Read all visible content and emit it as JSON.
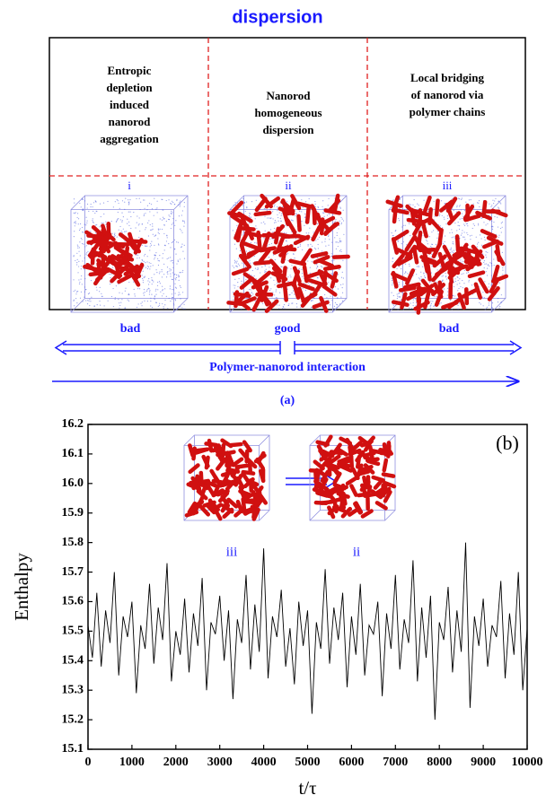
{
  "diagram": {
    "title": "dispersion",
    "columns": [
      {
        "heading": [
          "Entropic",
          "depletion",
          "induced",
          "nanorod",
          "aggregation"
        ],
        "label": "i",
        "quality": "bad"
      },
      {
        "heading": [
          "Nanorod",
          "homogeneous",
          "dispersion"
        ],
        "label": "ii",
        "quality": "good"
      },
      {
        "heading": [
          "Local bridging",
          "of nanorod via",
          "polymer chains"
        ],
        "label": "iii",
        "quality": "bad"
      }
    ],
    "axis_label": "Polymer-nanorod interaction",
    "caption": "(a)"
  },
  "chart_data": {
    "type": "line",
    "panel_label": "(b)",
    "inset_labels": [
      "iii",
      "ii"
    ],
    "xlabel": "t/τ",
    "ylabel": "Enthalpy",
    "color": "#000000",
    "xlim": [
      0,
      10000
    ],
    "ylim": [
      15.1,
      16.2
    ],
    "xticks": [
      0,
      1000,
      2000,
      3000,
      4000,
      5000,
      6000,
      7000,
      8000,
      9000,
      10000
    ],
    "yticks": [
      15.1,
      15.2,
      15.3,
      15.4,
      15.5,
      15.6,
      15.7,
      15.8,
      15.9,
      {
        "value": 16,
        "label": "16.0"
      },
      16.1,
      16.2
    ],
    "x": [
      0,
      100,
      200,
      300,
      400,
      500,
      600,
      700,
      800,
      900,
      1000,
      1100,
      1200,
      1300,
      1400,
      1500,
      1600,
      1700,
      1800,
      1900,
      2000,
      2100,
      2200,
      2300,
      2400,
      2500,
      2600,
      2700,
      2800,
      2900,
      3000,
      3100,
      3200,
      3300,
      3400,
      3500,
      3600,
      3700,
      3800,
      3900,
      4000,
      4100,
      4200,
      4300,
      4400,
      4500,
      4600,
      4700,
      4800,
      4900,
      5000,
      5100,
      5200,
      5300,
      5400,
      5500,
      5600,
      5700,
      5800,
      5900,
      6000,
      6100,
      6200,
      6300,
      6400,
      6500,
      6600,
      6700,
      6800,
      6900,
      7000,
      7100,
      7200,
      7300,
      7400,
      7500,
      7600,
      7700,
      7800,
      7900,
      8000,
      8100,
      8200,
      8300,
      8400,
      8500,
      8600,
      8700,
      8800,
      8900,
      9000,
      9100,
      9200,
      9300,
      9400,
      9500,
      9600,
      9700,
      9800,
      9900,
      10000
    ],
    "values": [
      15.52,
      15.41,
      15.63,
      15.38,
      15.57,
      15.46,
      15.7,
      15.35,
      15.55,
      15.48,
      15.6,
      15.29,
      15.52,
      15.44,
      15.66,
      15.39,
      15.58,
      15.47,
      15.73,
      15.33,
      15.5,
      15.42,
      15.61,
      15.36,
      15.56,
      15.45,
      15.68,
      15.3,
      15.53,
      15.49,
      15.62,
      15.4,
      15.57,
      15.27,
      15.54,
      15.46,
      15.69,
      15.37,
      15.59,
      15.43,
      15.78,
      15.34,
      15.55,
      15.48,
      15.64,
      15.38,
      15.51,
      15.32,
      15.6,
      15.45,
      15.57,
      15.22,
      15.53,
      15.44,
      15.71,
      15.39,
      15.58,
      15.47,
      15.63,
      15.31,
      15.55,
      15.42,
      15.66,
      15.35,
      15.52,
      15.49,
      15.6,
      15.28,
      15.56,
      15.44,
      15.69,
      15.37,
      15.54,
      15.46,
      15.74,
      15.33,
      15.58,
      15.41,
      15.62,
      15.2,
      15.53,
      15.47,
      15.65,
      15.36,
      15.57,
      15.43,
      15.8,
      15.24,
      15.55,
      15.45,
      15.61,
      15.38,
      15.52,
      15.48,
      15.67,
      15.34,
      15.56,
      15.42,
      15.7,
      15.3,
      15.51
    ]
  }
}
